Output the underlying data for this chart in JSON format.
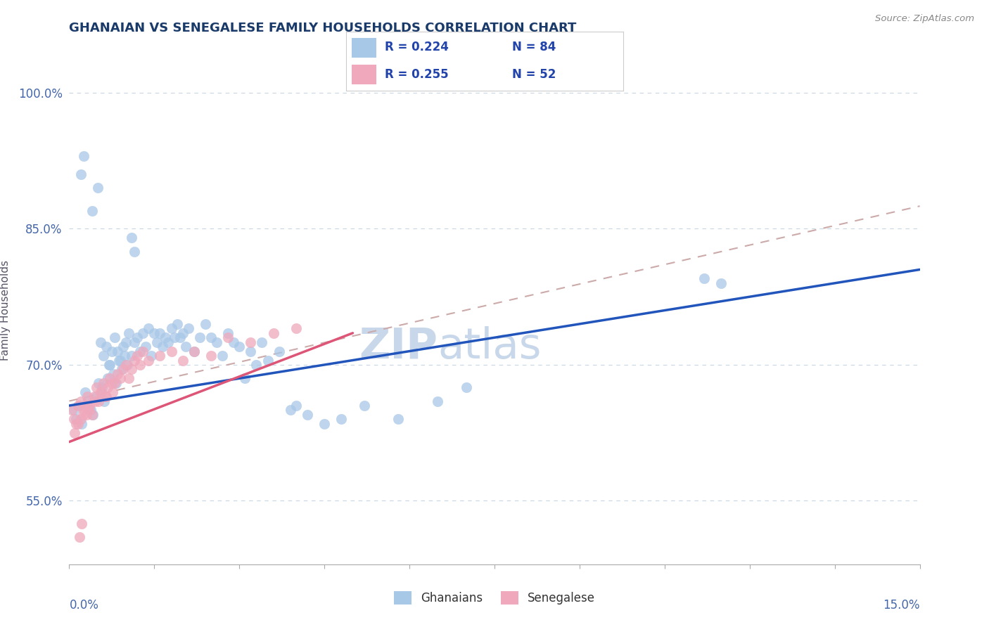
{
  "title": "GHANAIAN VS SENEGALESE FAMILY HOUSEHOLDS CORRELATION CHART",
  "source": "Source: ZipAtlas.com",
  "ylabel": "Family Households",
  "xlim": [
    0.0,
    15.0
  ],
  "ylim": [
    48.0,
    104.0
  ],
  "yticks": [
    55.0,
    70.0,
    85.0,
    100.0
  ],
  "ytick_labels": [
    "55.0%",
    "70.0%",
    "85.0%",
    "100.0%"
  ],
  "legend_r1": "R = 0.224",
  "legend_n1": "N = 84",
  "legend_r2": "R = 0.255",
  "legend_n2": "N = 52",
  "blue_color": "#a8c8e8",
  "pink_color": "#f0a8bc",
  "line_blue": "#2255bb",
  "line_pink": "#dd5577",
  "line_dashed_color": "#ccaaaa",
  "title_color": "#1a3a6a",
  "watermark_color": "#c8d8ea",
  "tick_label_color": "#4466aa",
  "legend_text_color": "#2244aa",
  "blue_line_x0": 0.0,
  "blue_line_y0": 65.5,
  "blue_line_x1": 15.0,
  "blue_line_y1": 80.5,
  "pink_line_x0": 0.0,
  "pink_line_y0": 61.5,
  "pink_line_x1": 5.0,
  "pink_line_y1": 73.5,
  "dash_line_x0": 0.0,
  "dash_line_y0": 66.0,
  "dash_line_x1": 15.0,
  "dash_line_y1": 87.5,
  "ghanaians_x": [
    0.08,
    0.12,
    0.18,
    0.22,
    0.28,
    0.32,
    0.38,
    0.42,
    0.48,
    0.52,
    0.58,
    0.62,
    0.68,
    0.72,
    0.78,
    0.82,
    0.88,
    0.92,
    0.98,
    1.02,
    0.55,
    0.6,
    0.65,
    0.7,
    0.75,
    0.8,
    0.85,
    0.9,
    0.95,
    1.0,
    1.05,
    1.1,
    1.15,
    1.2,
    1.25,
    1.3,
    1.35,
    1.4,
    1.45,
    1.5,
    1.55,
    1.6,
    1.65,
    1.7,
    1.75,
    1.8,
    1.85,
    1.9,
    1.95,
    2.0,
    2.05,
    2.1,
    2.2,
    2.3,
    2.4,
    2.5,
    2.6,
    2.7,
    2.8,
    2.9,
    3.0,
    3.2,
    3.4,
    3.5,
    3.7,
    3.9,
    4.2,
    4.8,
    5.2,
    5.8,
    6.5,
    7.0,
    1.1,
    1.15,
    0.4,
    0.5,
    0.2,
    0.25,
    3.1,
    3.3,
    4.0,
    4.5,
    11.2,
    11.5
  ],
  "ghanaians_y": [
    65.0,
    64.0,
    65.5,
    63.5,
    67.0,
    66.0,
    65.0,
    64.5,
    66.5,
    68.0,
    67.5,
    66.0,
    68.5,
    70.0,
    69.0,
    68.0,
    70.5,
    69.5,
    71.0,
    70.0,
    72.5,
    71.0,
    72.0,
    70.0,
    71.5,
    73.0,
    71.5,
    70.5,
    72.0,
    72.5,
    73.5,
    71.0,
    72.5,
    73.0,
    71.5,
    73.5,
    72.0,
    74.0,
    71.0,
    73.5,
    72.5,
    73.5,
    72.0,
    73.0,
    72.5,
    74.0,
    73.0,
    74.5,
    73.0,
    73.5,
    72.0,
    74.0,
    71.5,
    73.0,
    74.5,
    73.0,
    72.5,
    71.0,
    73.5,
    72.5,
    72.0,
    71.5,
    72.5,
    70.5,
    71.5,
    65.0,
    64.5,
    64.0,
    65.5,
    64.0,
    66.0,
    67.5,
    84.0,
    82.5,
    87.0,
    89.5,
    91.0,
    93.0,
    68.5,
    70.0,
    65.5,
    63.5,
    79.5,
    79.0
  ],
  "senegalese_x": [
    0.05,
    0.08,
    0.12,
    0.16,
    0.2,
    0.24,
    0.28,
    0.32,
    0.36,
    0.4,
    0.44,
    0.48,
    0.52,
    0.56,
    0.6,
    0.64,
    0.68,
    0.72,
    0.76,
    0.8,
    0.85,
    0.9,
    0.95,
    1.0,
    1.05,
    1.1,
    1.15,
    1.2,
    1.25,
    1.3,
    0.1,
    0.15,
    0.2,
    0.25,
    0.3,
    0.35,
    0.45,
    0.55,
    0.65,
    0.75,
    1.4,
    1.6,
    1.8,
    2.0,
    2.2,
    2.5,
    2.8,
    3.2,
    3.6,
    4.0,
    0.18,
    0.22
  ],
  "senegalese_y": [
    65.0,
    64.0,
    63.5,
    65.5,
    66.0,
    64.5,
    65.5,
    66.5,
    65.0,
    64.5,
    66.5,
    67.5,
    66.0,
    67.0,
    68.0,
    66.5,
    67.5,
    68.5,
    67.0,
    68.0,
    69.0,
    68.5,
    69.5,
    70.0,
    68.5,
    69.5,
    70.5,
    71.0,
    70.0,
    71.5,
    62.5,
    63.5,
    64.0,
    65.0,
    64.5,
    65.5,
    66.0,
    67.0,
    66.5,
    68.0,
    70.5,
    71.0,
    71.5,
    70.5,
    71.5,
    71.0,
    73.0,
    72.5,
    73.5,
    74.0,
    51.0,
    52.5
  ]
}
